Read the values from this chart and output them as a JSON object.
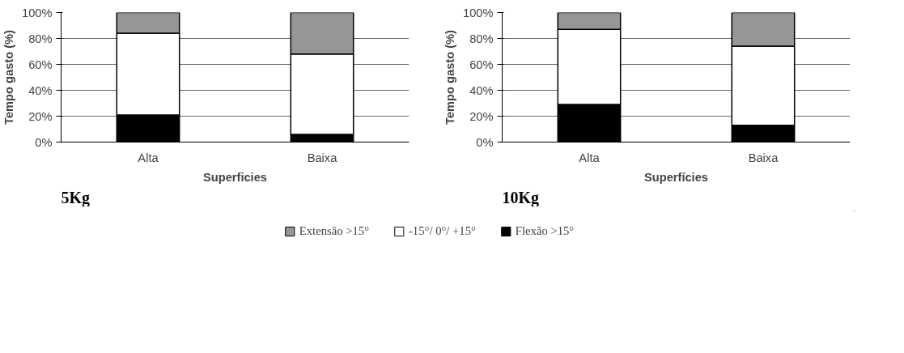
{
  "chart_data": [
    {
      "type": "bar",
      "stacked": true,
      "categories": [
        "Alta",
        "Baixa"
      ],
      "xlabel": "Superficies",
      "ylabel": "Tempo gasto (%)",
      "ylim": [
        0,
        100
      ],
      "yticks": [
        {
          "value": 0,
          "label": "0%"
        },
        {
          "value": 20,
          "label": "20%"
        },
        {
          "value": 40,
          "label": "40%"
        },
        {
          "value": 60,
          "label": "60%"
        },
        {
          "value": 80,
          "label": "80%"
        },
        {
          "value": 100,
          "label": "100%"
        }
      ],
      "grid": "y",
      "legend": "bottom",
      "annotations": [
        "5Kg"
      ],
      "series": [
        {
          "name": "Flexão >15°",
          "color": "#000000",
          "values": [
            21,
            6
          ]
        },
        {
          "name": "-15°/ 0°/ +15°",
          "color": "#ffffff",
          "values": [
            63,
            62
          ]
        },
        {
          "name": "Extensão >15°",
          "color": "#969696",
          "values": [
            16,
            32
          ]
        }
      ]
    },
    {
      "type": "bar",
      "stacked": true,
      "categories": [
        "Alta",
        "Baixa"
      ],
      "xlabel": "Superfícies",
      "ylabel": "Tempo gasto (%)",
      "ylim": [
        0,
        100
      ],
      "yticks": [
        {
          "value": 0,
          "label": "0%"
        },
        {
          "value": 20,
          "label": "20%"
        },
        {
          "value": 40,
          "label": "40%"
        },
        {
          "value": 60,
          "label": "60%"
        },
        {
          "value": 80,
          "label": "80%"
        },
        {
          "value": 100,
          "label": "100%"
        }
      ],
      "grid": "y",
      "annotations": [
        "10Kg"
      ],
      "series": [
        {
          "color": "#000000",
          "values": [
            29,
            13
          ]
        },
        {
          "color": "#ffffff",
          "values": [
            58,
            61
          ]
        },
        {
          "color": "#969696",
          "values": [
            13,
            26
          ]
        }
      ]
    }
  ]
}
